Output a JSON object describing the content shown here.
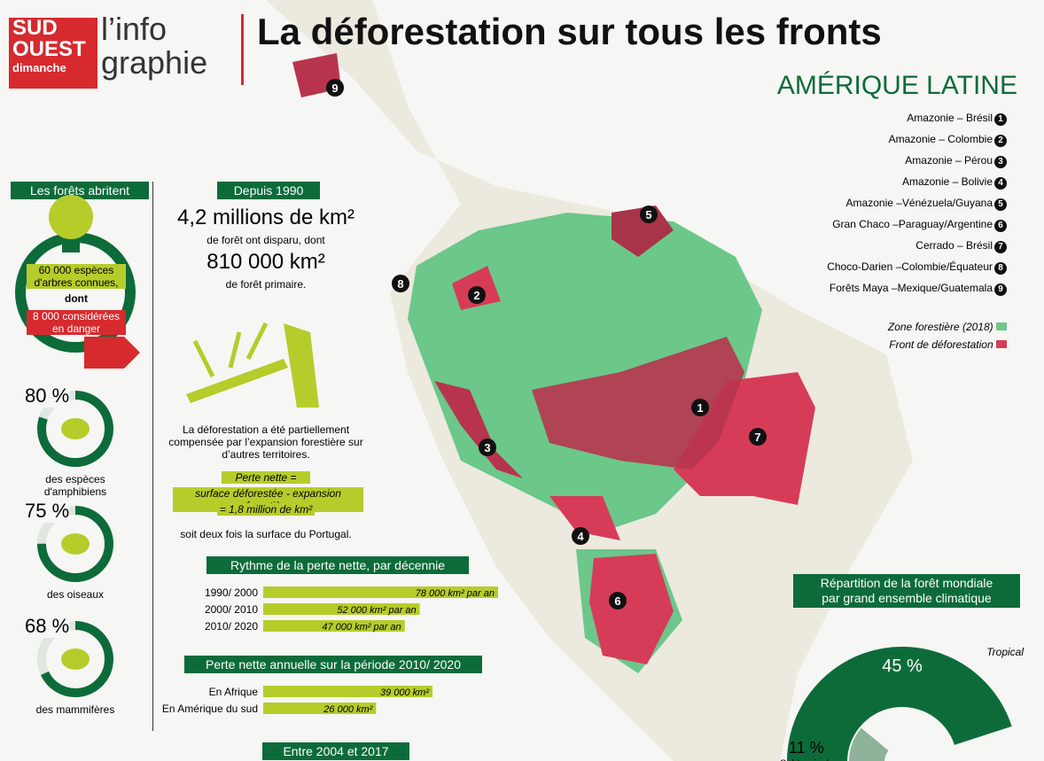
{
  "header": {
    "brand_top": "SUD",
    "brand_mid": "OUEST",
    "brand_bottom": "dimanche",
    "section_1": "l’info",
    "section_2": "graphie",
    "title": "La déforestation sur tous les fronts"
  },
  "map": {
    "region": "AMÉRIQUE LATINE",
    "fronts": [
      {
        "label": "Amazonie – Brésil",
        "number": "1"
      },
      {
        "label": "Amazonie – Colombie",
        "number": "2"
      },
      {
        "label": "Amazonie – Pérou",
        "number": "3"
      },
      {
        "label": "Amazonie – Bolivie",
        "number": "4"
      },
      {
        "label": "Amazonie –Vénézuela/Guyana",
        "number": "5"
      },
      {
        "label": "Gran Chaco –Paraguay/Argentine",
        "number": "6"
      },
      {
        "label": "Cerrado – Brésil",
        "number": "7"
      },
      {
        "label": "Choco-Darien –Colombie/Équateur",
        "number": "8"
      },
      {
        "label": "Forêts Maya –Mexique/Guatemala",
        "number": "9"
      }
    ],
    "legend": [
      "Zone forestière (2018)",
      "Front de déforestation"
    ]
  },
  "species": {
    "title": "Les forêts abritent",
    "trees_1": "60 000 espèces d'arbres connues,",
    "trees_2": "dont",
    "trees_3": "8 000 considérées en danger",
    "groups": [
      {
        "value": 80,
        "label": "80 %",
        "caption": "des espèces d'amphibiens"
      },
      {
        "value": 75,
        "label": "75 %",
        "caption": "des oiseaux"
      },
      {
        "value": 68,
        "label": "68 %",
        "caption": "des mammifères"
      }
    ]
  },
  "since_1990": {
    "title": "Depuis 1990",
    "total": "4,2 millions de km²",
    "total_caption": "de forêt ont disparu, dont",
    "primary": "810 000 km²",
    "primary_caption": "de forêt primaire.",
    "note": "La déforestation a été partiellement compensée par l’expansion forestière sur d’autres territoires.",
    "formula_1": "Perte nette =",
    "formula_2": "surface déforestée - expansion forestière",
    "formula_3": "= 1,8 million de km²",
    "comparison": "soit deux fois la surface du Portugal."
  },
  "rates": {
    "title": "Rythme de la perte nette, par décennie",
    "rows": [
      {
        "period": "1990/ 2000",
        "value": 78000,
        "label": "78 000 km² par an"
      },
      {
        "period": "2000/ 2010",
        "value": 52000,
        "label": "52 000 km² par an"
      },
      {
        "period": "2010/ 2020",
        "value": 47000,
        "label": "47 000 km² par an"
      }
    ]
  },
  "annual": {
    "title": "Perte nette annuelle sur la période 2010/ 2020",
    "rows": [
      {
        "region": "En Afrique",
        "value": 39000,
        "label": "39 000 km²"
      },
      {
        "region": "En Amérique du sud",
        "value": 26000,
        "label": "26 000 km²"
      }
    ]
  },
  "footer_title": "Entre 2004 et 2017",
  "climate": {
    "title_1": "Répartition de la forêt mondiale",
    "title_2": "par grand ensemble climatique",
    "zones": [
      {
        "name": "Tropical",
        "value": 45,
        "label": "45 %"
      },
      {
        "name": "Subtropical",
        "value": 11,
        "label": "11 %"
      }
    ]
  }
}
